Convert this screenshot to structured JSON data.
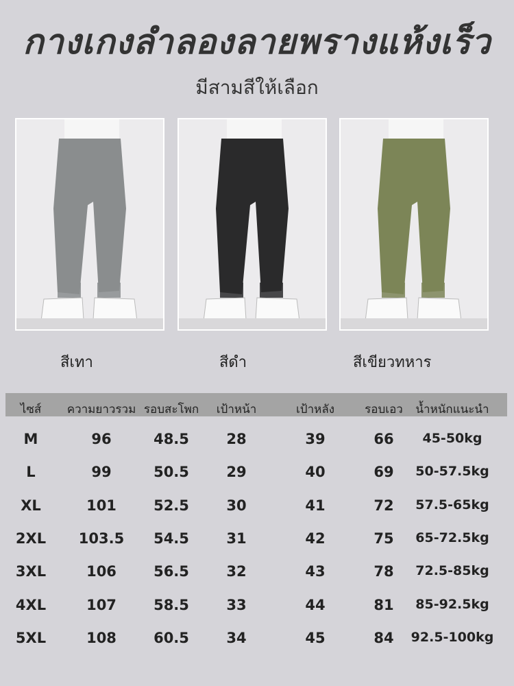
{
  "title": "กางเกงลำลองลายพรางแห้งเร็ว",
  "subtitle": "มีสามสีให้เลือก",
  "colors": [
    {
      "label": "สีเทา",
      "swatch": "#8a8d8e"
    },
    {
      "label": "สีดำ",
      "swatch": "#2a2a2b"
    },
    {
      "label": "สีเขียวทหาร",
      "swatch": "#7c8557"
    }
  ],
  "table": {
    "header_color": "#a4a4a4",
    "columns": [
      "ไซส์",
      "ความยาวรวม",
      "รอบสะโพก",
      "เป้าหน้า",
      "เป้าหลัง",
      "รอบเอว",
      "น้ำหนักแนะนำ"
    ],
    "rows": [
      [
        "M",
        "96",
        "48.5",
        "28",
        "39",
        "66",
        "45-50kg"
      ],
      [
        "L",
        "99",
        "50.5",
        "29",
        "40",
        "69",
        "50-57.5kg"
      ],
      [
        "XL",
        "101",
        "52.5",
        "30",
        "41",
        "72",
        "57.5-65kg"
      ],
      [
        "2XL",
        "103.5",
        "54.5",
        "31",
        "42",
        "75",
        "65-72.5kg"
      ],
      [
        "3XL",
        "106",
        "56.5",
        "32",
        "43",
        "78",
        "72.5-85kg"
      ],
      [
        "4XL",
        "107",
        "58.5",
        "33",
        "44",
        "81",
        "85-92.5kg"
      ],
      [
        "5XL",
        "108",
        "60.5",
        "34",
        "45",
        "84",
        "92.5-100kg"
      ]
    ]
  }
}
